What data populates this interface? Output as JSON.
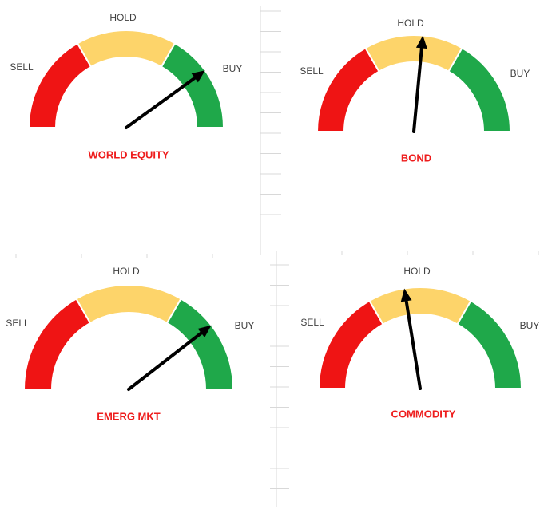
{
  "chart_data": [
    {
      "type": "gauge",
      "title": "WORLD EQUITY",
      "zones": [
        {
          "label": "SELL",
          "color": "#ef1414"
        },
        {
          "label": "HOLD",
          "color": "#fdd46a"
        },
        {
          "label": "BUY",
          "color": "#1fa84a"
        }
      ],
      "needle_fraction": 0.8
    },
    {
      "type": "gauge",
      "title": "BOND",
      "zones": [
        {
          "label": "SELL",
          "color": "#ef1414"
        },
        {
          "label": "HOLD",
          "color": "#fdd46a"
        },
        {
          "label": "BUY",
          "color": "#1fa84a"
        }
      ],
      "needle_fraction": 0.53
    },
    {
      "type": "gauge",
      "title": "EMERG MKT",
      "zones": [
        {
          "label": "SELL",
          "color": "#ef1414"
        },
        {
          "label": "HOLD",
          "color": "#fdd46a"
        },
        {
          "label": "BUY",
          "color": "#1fa84a"
        }
      ],
      "needle_fraction": 0.79
    },
    {
      "type": "gauge",
      "title": "COMMODITY",
      "zones": [
        {
          "label": "SELL",
          "color": "#ef1414"
        },
        {
          "label": "HOLD",
          "color": "#fdd46a"
        },
        {
          "label": "BUY",
          "color": "#1fa84a"
        }
      ],
      "needle_fraction": 0.45
    }
  ]
}
